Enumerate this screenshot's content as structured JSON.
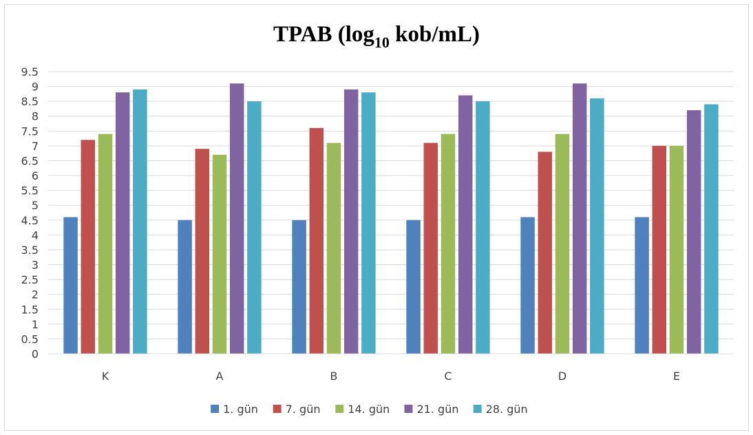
{
  "chart_data": {
    "type": "bar",
    "title": {
      "main": "TPAB (log",
      "sub": "10",
      "tail": " kob/mL)"
    },
    "categories": [
      "K",
      "A",
      "B",
      "C",
      "D",
      "E"
    ],
    "series": [
      {
        "name": "1. gün",
        "color": "#4f81bd",
        "values": [
          4.6,
          4.5,
          4.5,
          4.5,
          4.6,
          4.6
        ]
      },
      {
        "name": "7. gün",
        "color": "#c0504d",
        "values": [
          7.2,
          6.9,
          7.6,
          7.1,
          6.8,
          7.0
        ]
      },
      {
        "name": "14. gün",
        "color": "#9bbb59",
        "values": [
          7.4,
          6.7,
          7.1,
          7.4,
          7.4,
          7.0
        ]
      },
      {
        "name": "21. gün",
        "color": "#8064a2",
        "values": [
          8.8,
          9.1,
          8.9,
          8.7,
          9.1,
          8.2
        ]
      },
      {
        "name": "28. gün",
        "color": "#4bacc6",
        "values": [
          8.9,
          8.5,
          8.8,
          8.5,
          8.6,
          8.4
        ]
      }
    ],
    "yticks": [
      "0",
      "0.5",
      "1",
      "1.5",
      "2",
      "2.5",
      "3",
      "3.5",
      "4",
      "4.5",
      "5",
      "5.5",
      "6",
      "6.5",
      "7",
      "7.5",
      "8",
      "8.5",
      "9",
      "9.5"
    ],
    "ylim": [
      0,
      9.5
    ],
    "grid": true,
    "legend": "bottom"
  }
}
